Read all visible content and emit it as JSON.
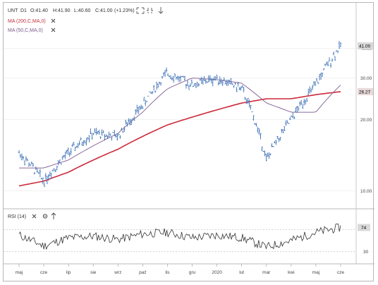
{
  "header": {
    "symbol": "UNT",
    "timeframe": "D1",
    "open": "O:41.40",
    "high": "H:41.90",
    "low": "L:40.60",
    "close": "C:41.00",
    "change": "(+1.23%)",
    "ma200_label": "MA (200,C,MA,0)",
    "ma50_label": "MA (50,C,MA,0)",
    "rsi_label": "RSI (14)"
  },
  "colors": {
    "candles": "#3b6fb6",
    "ma200": "#cc2a3a",
    "ma50": "#8a6a9a",
    "rsi": "#333333",
    "last_price_badge": "#d9d9d9",
    "ma200_badge": "#e8d8d8",
    "grid": "#e6e6e6"
  },
  "icons": [
    "expand-icon",
    "collapse-icon",
    "down-arrow-icon",
    "close-icon",
    "settings-icon"
  ],
  "chart_data": [
    {
      "type": "line",
      "title": "UNT D1",
      "y_scale": "log",
      "ylim": [
        9,
        48
      ],
      "yticks": [
        "10.00",
        "20.00",
        "30.00",
        "40.00"
      ],
      "badges": {
        "last_price": "41.00",
        "ma200": "26.27"
      },
      "categories": [
        "maj",
        "cze",
        "lip",
        "sie",
        "wrz",
        "paź",
        "lis",
        "gru",
        "2020",
        "lut",
        "mar",
        "kwi",
        "maj",
        "cze"
      ],
      "series": [
        {
          "name": "UNT",
          "values": [
            14.5,
            11.0,
            14.5,
            17.5,
            17.0,
            23.0,
            31.5,
            28.0,
            30.0,
            27.0,
            13.5,
            20.0,
            28.0,
            41.0
          ]
        },
        {
          "name": "MA (200,C,MA,0)",
          "values": [
            10.5,
            11.0,
            12.0,
            13.5,
            15.0,
            17.0,
            19.0,
            20.5,
            22.0,
            23.5,
            24.5,
            24.5,
            25.5,
            26.27
          ]
        },
        {
          "name": "MA (50,C,MA,0)",
          "values": [
            12.5,
            12.5,
            13.5,
            15.5,
            17.5,
            21.5,
            27.0,
            30.0,
            29.5,
            28.5,
            23.5,
            21.5,
            21.5,
            28.0
          ]
        }
      ]
    },
    {
      "type": "line",
      "title": "RSI (14)",
      "ylim": [
        20,
        85
      ],
      "yticks": [
        "30"
      ],
      "badges": {
        "rsi": "74"
      },
      "series": [
        {
          "name": "RSI (14)",
          "values": [
            60,
            40,
            55,
            58,
            52,
            62,
            65,
            55,
            60,
            55,
            38,
            50,
            65,
            74
          ]
        }
      ]
    }
  ]
}
